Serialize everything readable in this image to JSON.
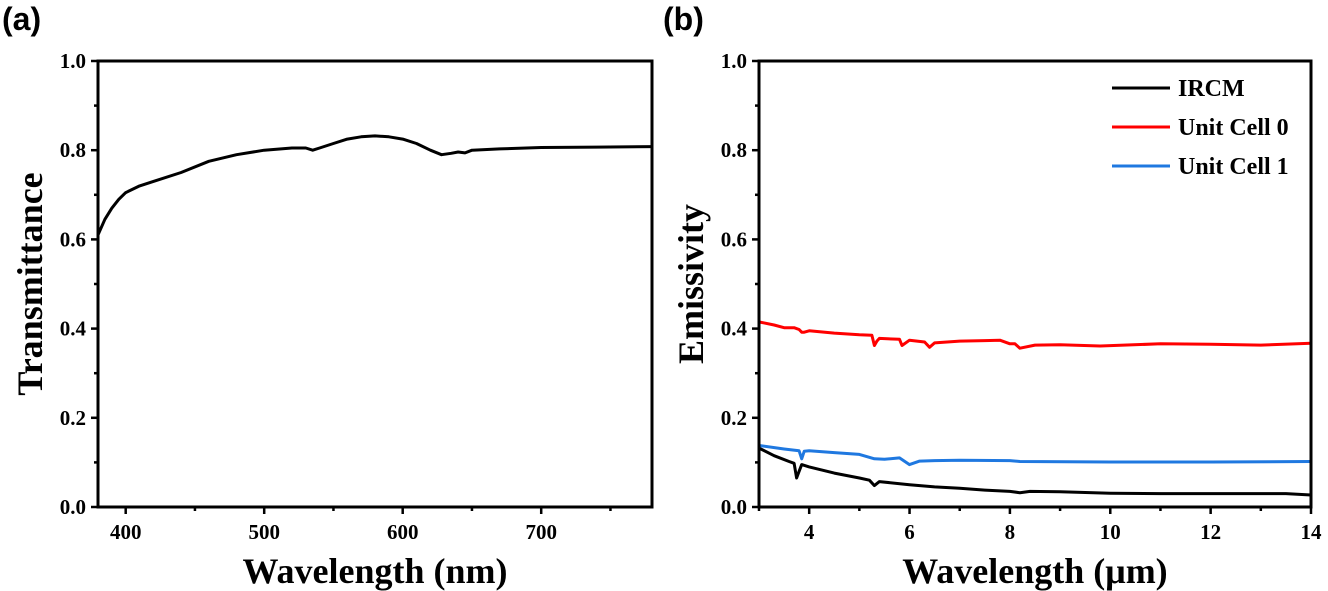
{
  "chart_data": [
    {
      "type": "line",
      "panel_label": "(a)",
      "xlabel": "Wavelength (nm)",
      "ylabel": "Transmittance",
      "xlim": [
        380,
        780
      ],
      "ylim": [
        0.0,
        1.0
      ],
      "xticks": [
        400,
        500,
        600,
        700
      ],
      "xtick_labels": [
        "400",
        "500",
        "600",
        "700"
      ],
      "yticks": [
        0.0,
        0.2,
        0.4,
        0.6,
        0.8,
        1.0
      ],
      "ytick_labels": [
        "0.0",
        "0.2",
        "0.4",
        "0.6",
        "0.8",
        "1.0"
      ],
      "grid": false,
      "series": [
        {
          "color": "#000000",
          "x": [
            380,
            385,
            390,
            395,
            400,
            410,
            420,
            440,
            460,
            480,
            500,
            520,
            530,
            535,
            540,
            550,
            560,
            570,
            580,
            590,
            600,
            610,
            620,
            628,
            635,
            640,
            645,
            650,
            670,
            700,
            740,
            780
          ],
          "y": [
            0.61,
            0.645,
            0.67,
            0.69,
            0.705,
            0.72,
            0.73,
            0.75,
            0.775,
            0.79,
            0.8,
            0.805,
            0.805,
            0.8,
            0.805,
            0.815,
            0.825,
            0.83,
            0.832,
            0.83,
            0.825,
            0.815,
            0.8,
            0.79,
            0.793,
            0.796,
            0.794,
            0.8,
            0.803,
            0.806,
            0.807,
            0.808
          ]
        }
      ]
    },
    {
      "type": "line",
      "panel_label": "(b)",
      "xlabel": "Wavelength (μm)",
      "ylabel": "Emissivity",
      "xlim": [
        3,
        14
      ],
      "ylim": [
        0.0,
        1.0
      ],
      "xticks": [
        4,
        6,
        8,
        10,
        12,
        14
      ],
      "xtick_labels": [
        "4",
        "6",
        "8",
        "10",
        "12",
        "14"
      ],
      "yticks": [
        0.0,
        0.2,
        0.4,
        0.6,
        0.8,
        1.0
      ],
      "ytick_labels": [
        "0.0",
        "0.2",
        "0.4",
        "0.6",
        "0.8",
        "1.0"
      ],
      "grid": false,
      "legend_position": "top-right",
      "series": [
        {
          "name": "IRCM",
          "color": "#000000",
          "x": [
            3,
            3.3,
            3.6,
            3.7,
            3.75,
            3.8,
            3.85,
            4,
            4.5,
            5,
            5.2,
            5.3,
            5.4,
            6,
            6.5,
            7,
            7.5,
            8,
            8.2,
            8.4,
            9,
            10,
            11,
            12,
            13,
            13.5,
            14
          ],
          "y": [
            0.132,
            0.115,
            0.102,
            0.098,
            0.065,
            0.08,
            0.095,
            0.09,
            0.076,
            0.065,
            0.06,
            0.048,
            0.057,
            0.05,
            0.045,
            0.042,
            0.038,
            0.035,
            0.032,
            0.035,
            0.034,
            0.031,
            0.03,
            0.03,
            0.03,
            0.03,
            0.027
          ]
        },
        {
          "name": "Unit Cell 0",
          "color": "#ff0000",
          "x": [
            3,
            3.3,
            3.5,
            3.7,
            3.8,
            3.85,
            3.9,
            4,
            4.5,
            5,
            5.25,
            5.3,
            5.35,
            5.4,
            5.8,
            5.85,
            6,
            6.3,
            6.4,
            6.5,
            7,
            7.5,
            7.8,
            8,
            8.1,
            8.2,
            8.5,
            9,
            9.8,
            11,
            12,
            13,
            14
          ],
          "y": [
            0.415,
            0.408,
            0.402,
            0.402,
            0.398,
            0.392,
            0.392,
            0.395,
            0.39,
            0.386,
            0.385,
            0.362,
            0.372,
            0.378,
            0.376,
            0.362,
            0.374,
            0.37,
            0.358,
            0.368,
            0.372,
            0.373,
            0.374,
            0.366,
            0.366,
            0.356,
            0.363,
            0.364,
            0.361,
            0.366,
            0.365,
            0.363,
            0.367
          ]
        },
        {
          "name": "Unit Cell 1",
          "color": "#1f78e0",
          "x": [
            3,
            3.5,
            3.8,
            3.85,
            3.9,
            4,
            4.5,
            5,
            5.3,
            5.5,
            5.8,
            6,
            6.2,
            6.5,
            7,
            8,
            8.2,
            10,
            12,
            14
          ],
          "y": [
            0.138,
            0.13,
            0.126,
            0.108,
            0.125,
            0.126,
            0.122,
            0.118,
            0.108,
            0.107,
            0.11,
            0.095,
            0.103,
            0.104,
            0.105,
            0.104,
            0.102,
            0.101,
            0.101,
            0.102
          ]
        }
      ]
    }
  ]
}
